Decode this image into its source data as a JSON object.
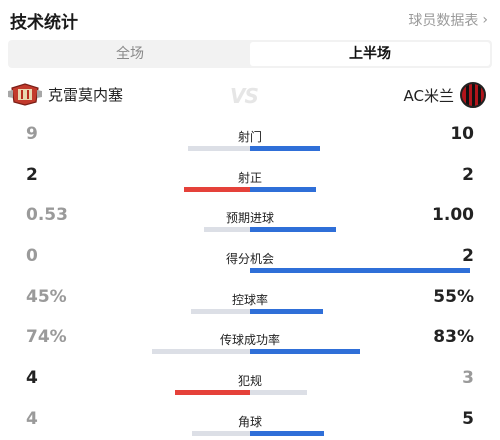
{
  "header": {
    "title": "技术统计",
    "report_link": "球员数据表",
    "chevron": "›"
  },
  "tabs": [
    {
      "label": "全场",
      "active": false
    },
    {
      "label": "上半场",
      "active": true
    }
  ],
  "teams": {
    "home": {
      "name": "克雷莫内塞",
      "crest": "cremonese-crest-icon"
    },
    "away": {
      "name": "AC米兰",
      "crest": "ac-milan-crest-icon"
    },
    "vs": "VS"
  },
  "colors": {
    "home": "#e5413a",
    "away": "#2f6fd8",
    "track": "#dcdfe6",
    "muted": "#9a9a9a"
  },
  "stats": [
    {
      "label": "射门",
      "home": "9",
      "away": "10",
      "home_share": 0.47,
      "away_share": 0.53,
      "leader": "away"
    },
    {
      "label": "射正",
      "home": "2",
      "away": "2",
      "home_share": 0.5,
      "away_share": 0.5,
      "leader": "both"
    },
    {
      "label": "预期进球",
      "home": "0.53",
      "away": "1.00",
      "home_share": 0.35,
      "away_share": 0.65,
      "leader": "away"
    },
    {
      "label": "得分机会",
      "home": "0",
      "away": "2",
      "home_share": 0.0,
      "away_share": 1.0,
      "leader": "away"
    },
    {
      "label": "控球率",
      "home": "45%",
      "away": "55%",
      "home_share": 0.45,
      "away_share": 0.55,
      "leader": "away"
    },
    {
      "label": "传球成功率",
      "home": "74%",
      "away": "83%",
      "home_share": 0.74,
      "away_share": 0.83,
      "leader": "away"
    },
    {
      "label": "犯规",
      "home": "4",
      "away": "3",
      "home_share": 0.57,
      "away_share": 0.43,
      "leader": "home"
    },
    {
      "label": "角球",
      "home": "4",
      "away": "5",
      "home_share": 0.44,
      "away_share": 0.56,
      "leader": "away"
    }
  ]
}
